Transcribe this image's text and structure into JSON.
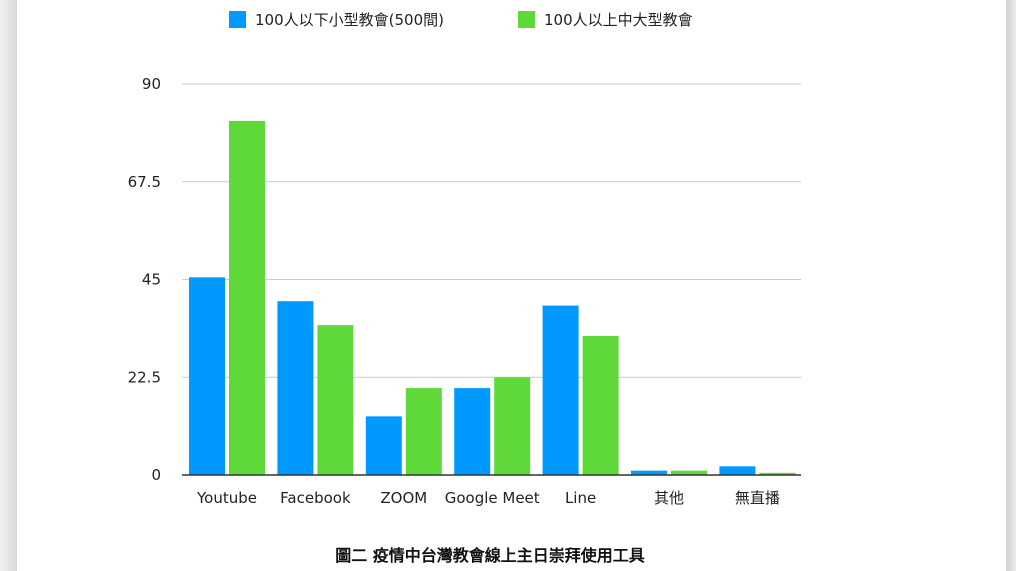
{
  "chart_data": {
    "type": "bar",
    "title": "",
    "caption": "圖二 疫情中台灣教會線上主日崇拜使用工具",
    "categories": [
      "Youtube",
      "Facebook",
      "ZOOM",
      "Google Meet",
      "Line",
      "其他",
      "無直播"
    ],
    "series": [
      {
        "name": "100人以下小型教會(500間)",
        "color": "#0099ff",
        "values": [
          45.5,
          40,
          13.5,
          20,
          39,
          1,
          2
        ]
      },
      {
        "name": "100人以上中大型教會",
        "color": "#5fd93a",
        "values": [
          81.5,
          34.5,
          20,
          22.5,
          32,
          1,
          0.5
        ]
      }
    ],
    "yticks": [
      "0",
      "22.5",
      "45",
      "67.5",
      "90"
    ],
    "ylim": [
      0,
      90
    ],
    "xlabel": "",
    "ylabel": "",
    "grid": true,
    "legend_position": "top"
  }
}
